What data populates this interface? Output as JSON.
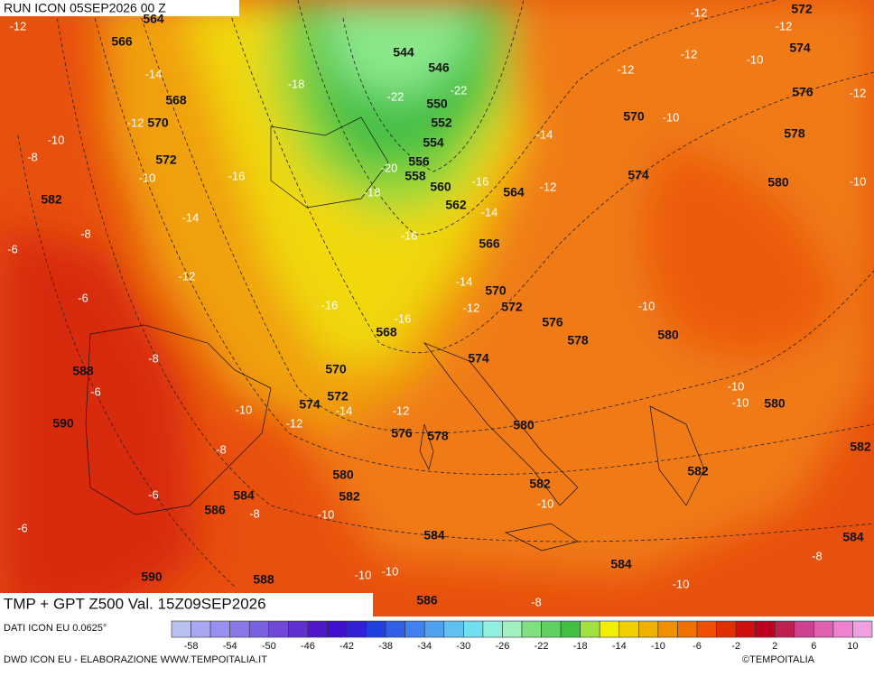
{
  "header": {
    "run": "RUN ICON 05SEP2026 00 Z",
    "product": "TMP + GPT Z500 Val. 15Z09SEP2026"
  },
  "geopotential_labels": [
    564,
    566,
    568,
    570,
    572,
    582,
    588,
    590,
    590,
    588,
    586,
    584,
    580,
    582,
    584,
    586,
    584,
    582,
    580,
    578,
    576,
    574,
    572,
    570,
    568,
    574,
    572,
    570,
    576,
    578,
    580,
    582,
    584,
    582,
    580,
    580,
    578,
    576,
    574,
    572,
    570,
    574,
    566,
    564,
    562,
    560,
    558,
    556,
    554,
    552,
    550,
    546,
    544
  ],
  "temperature_labels": [
    -12,
    -14,
    -18,
    -22,
    -22,
    -12,
    -10,
    -8,
    -10,
    -16,
    -20,
    -18,
    -16,
    -14,
    -12,
    -14,
    -14,
    -8,
    -6,
    -16,
    -12,
    -6,
    -16,
    -16,
    -14,
    -12,
    -8,
    -6,
    -10,
    -12,
    -14,
    -12,
    -8,
    -6,
    -8,
    -10,
    -6,
    -10,
    -10,
    -10,
    -8,
    -10,
    -8,
    -10,
    -10,
    -10,
    -10,
    -12,
    -12,
    -12,
    -12,
    -10,
    -12,
    -10
  ],
  "colorbar": {
    "colors": [
      "#b8c0f0",
      "#a8a8f0",
      "#9890f0",
      "#8878e8",
      "#7860e0",
      "#7048d8",
      "#6030d0",
      "#5018c8",
      "#4010d0",
      "#3020d8",
      "#2040e0",
      "#3060e8",
      "#4080f0",
      "#50a0f0",
      "#60c0f0",
      "#70e0f0",
      "#90f0e0",
      "#a0f0c0",
      "#80e080",
      "#60d060",
      "#40c040",
      "#a0e040",
      "#f0f000",
      "#f0d000",
      "#f0b000",
      "#f09000",
      "#f07000",
      "#f05000",
      "#e03000",
      "#d01010",
      "#c00020",
      "#c02050",
      "#d04090",
      "#e060b0",
      "#f080d0",
      "#f0a0e0"
    ],
    "ticks": [
      -58,
      -54,
      -50,
      -46,
      -42,
      -38,
      -34,
      -30,
      -26,
      -22,
      -18,
      -14,
      -10,
      -6,
      -2,
      2,
      6,
      10
    ]
  },
  "footer": {
    "data_source": "DATI ICON EU 0.0625°",
    "credits": "DWD ICON EU - ELABORAZIONE WWW.TEMPOITALIA.IT",
    "copyright": "©TEMPOITALIA"
  }
}
